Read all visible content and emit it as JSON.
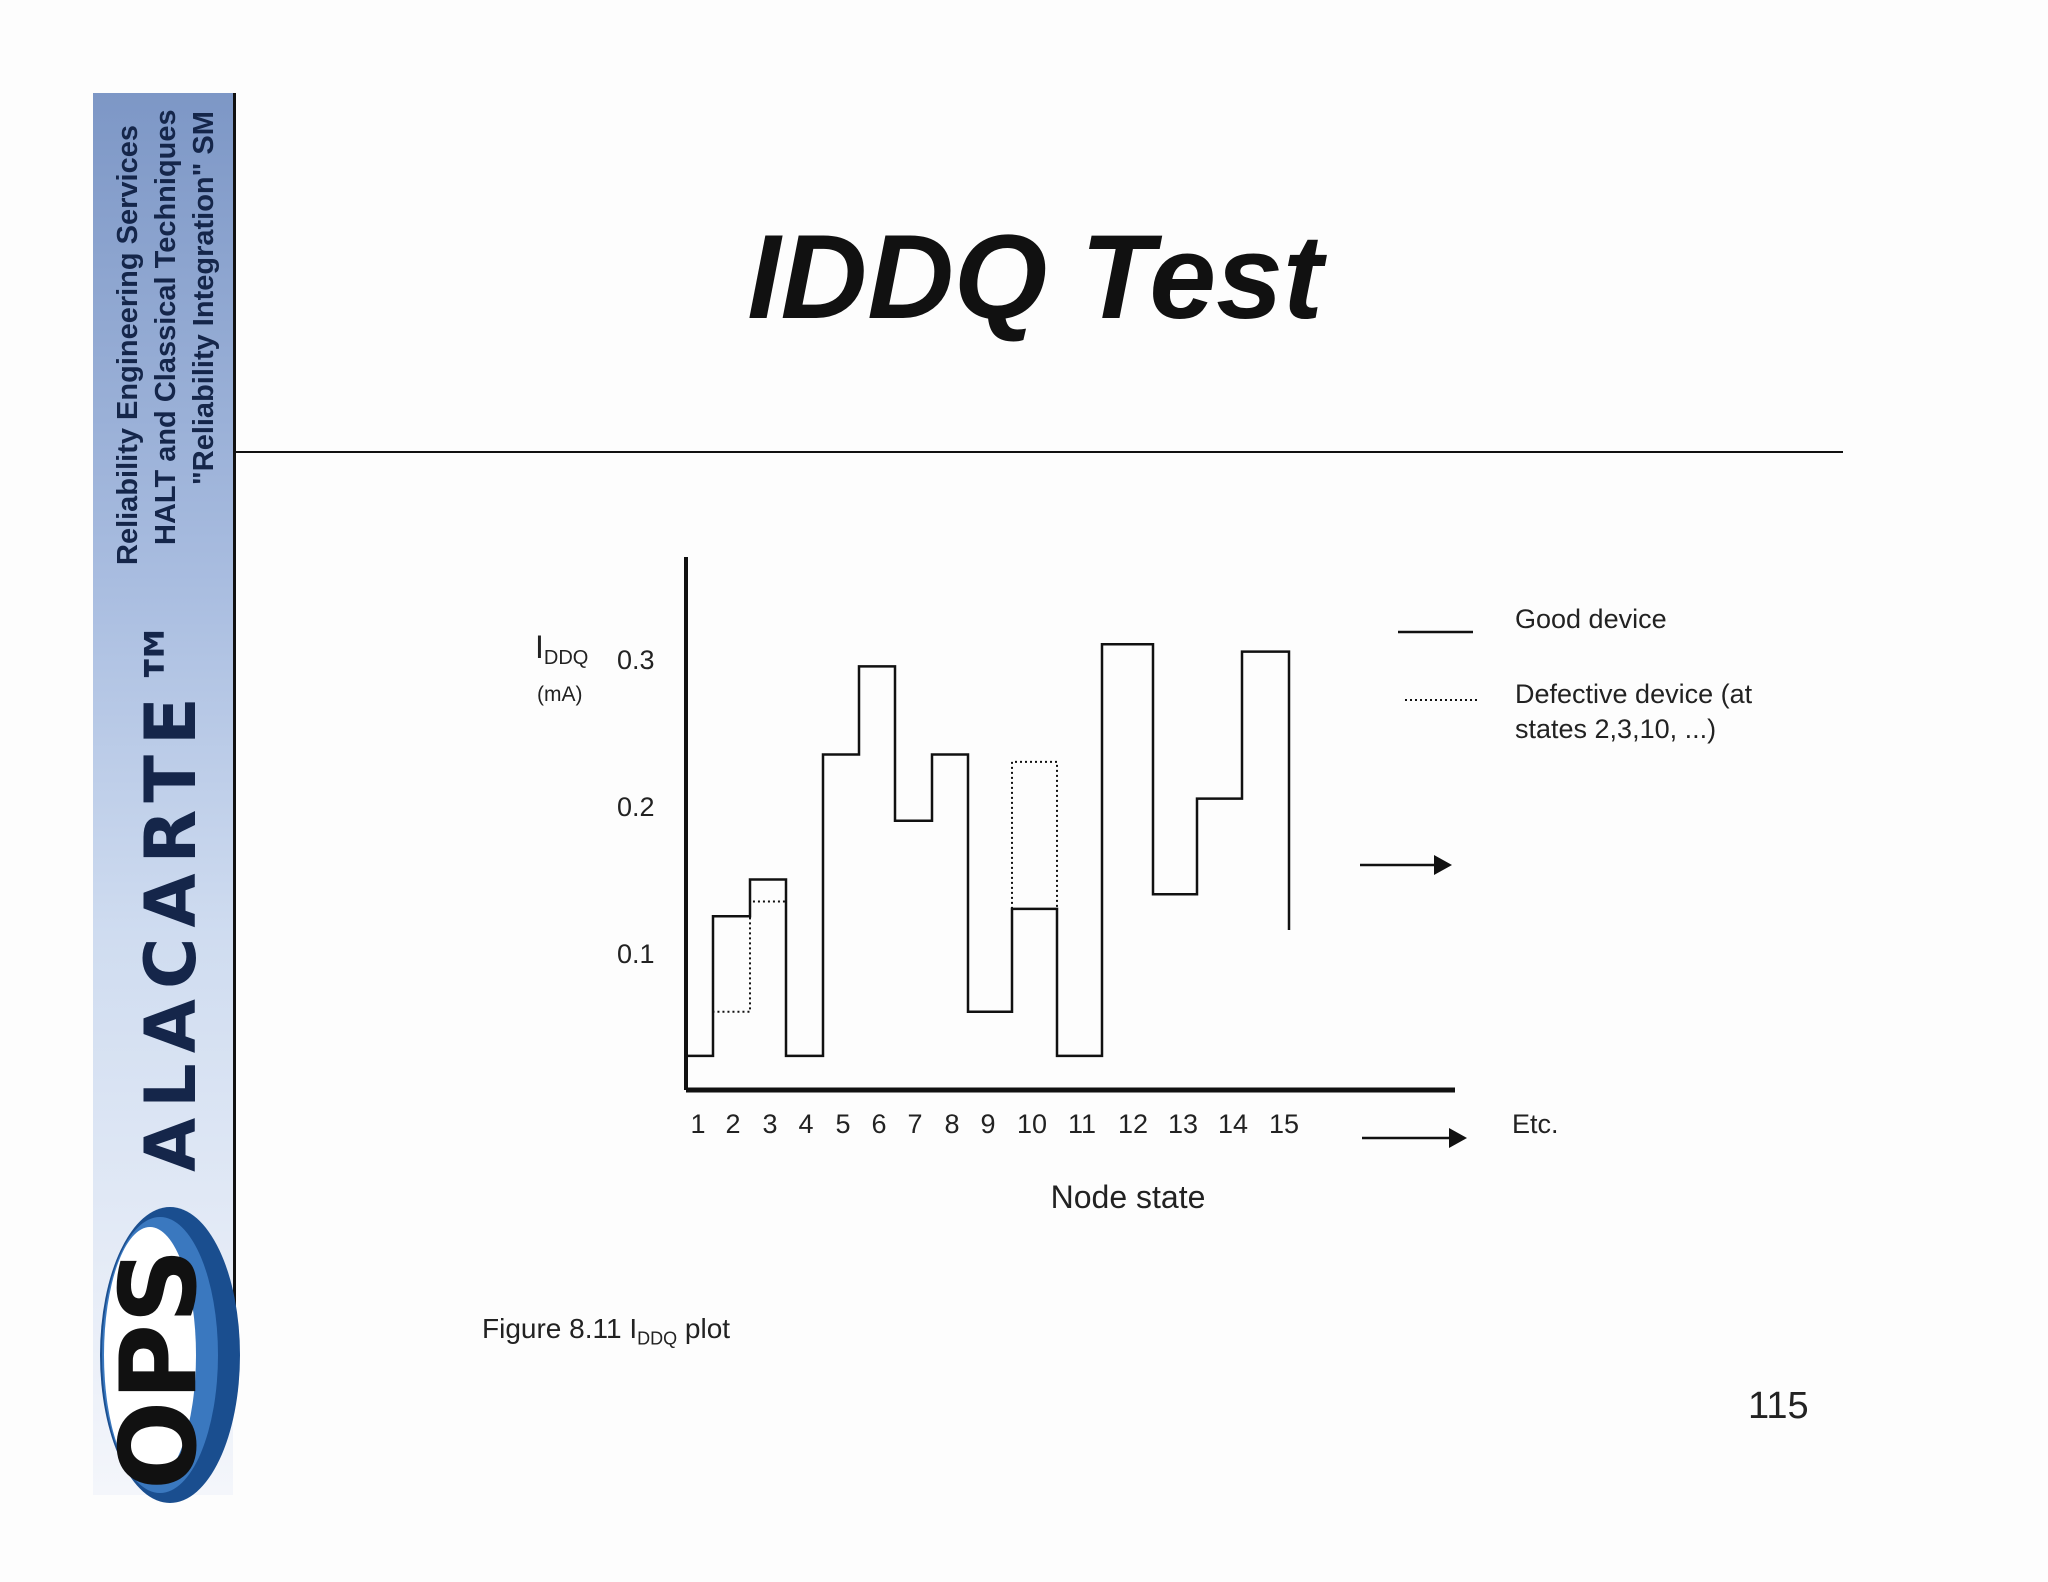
{
  "sidebar": {
    "tagline_1": "Reliability Engineering Services",
    "tagline_2": "HALT and Classical Techniques",
    "tagline_3": "\"Reliability Integration\" SM",
    "brand": "ALACARTE™",
    "logo_text": "OPS"
  },
  "slide": {
    "title": "IDDQ Test",
    "caption_prefix": "Figure 8.11  I",
    "caption_sub": "DDQ",
    "caption_suffix": " plot",
    "page_number": "115"
  },
  "chart_data": {
    "type": "line",
    "step": true,
    "title": "",
    "ylabel_main": "I",
    "ylabel_sub": "DDQ",
    "yunit": "(mA)",
    "xlabel": "Node state",
    "x_etc_label": "Etc.",
    "ytick_labels": [
      "0.3",
      "0.2",
      "0.1"
    ],
    "yticks": [
      0.3,
      0.2,
      0.1
    ],
    "ylim": [
      0.0,
      0.32
    ],
    "categories": [
      "1",
      "2",
      "3",
      "4",
      "5",
      "6",
      "7",
      "8",
      "9",
      "10",
      "11",
      "12",
      "13",
      "14",
      "15"
    ],
    "series": [
      {
        "name": "Good device",
        "style": "solid",
        "values": [
          0.03,
          0.125,
          0.15,
          0.03,
          0.235,
          0.295,
          0.19,
          0.235,
          0.06,
          0.13,
          0.03,
          0.31,
          0.14,
          0.205,
          0.305
        ]
      },
      {
        "name": "Defective device (at states 2,3,10, ...)",
        "style": "dotted",
        "values": [
          null,
          0.06,
          0.135,
          null,
          null,
          null,
          null,
          null,
          null,
          0.23,
          null,
          null,
          null,
          null,
          null
        ]
      }
    ],
    "legend": {
      "position": "right"
    },
    "colors": {
      "line": "#111111"
    }
  }
}
